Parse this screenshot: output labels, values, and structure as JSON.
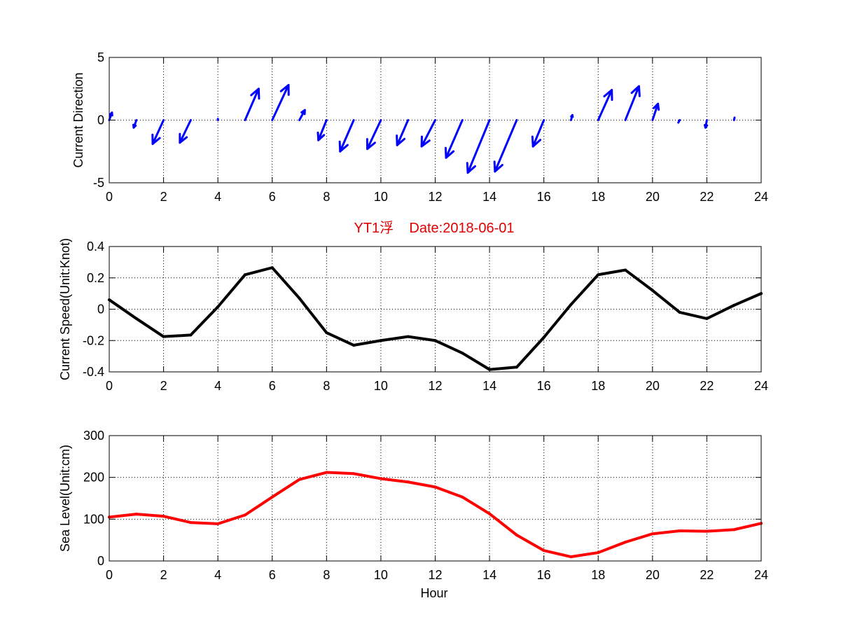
{
  "figure": {
    "title": "YT1浮    Date:2018-06-01",
    "title_color": "#e00000",
    "xlabel": "Hour"
  },
  "chart_data": [
    {
      "type": "quiver",
      "ylabel": "Current Direction",
      "xlim": [
        0,
        24
      ],
      "ylim": [
        -5,
        5
      ],
      "xticks": [
        0,
        2,
        4,
        6,
        8,
        10,
        12,
        14,
        16,
        18,
        20,
        22,
        24
      ],
      "yticks": [
        -5,
        0,
        5
      ],
      "grid": true,
      "color": "#0000ff",
      "arrows": [
        {
          "x": 0,
          "u": 0.1,
          "v": 0.6
        },
        {
          "x": 1,
          "u": -0.1,
          "v": -0.6
        },
        {
          "x": 2,
          "u": -0.4,
          "v": -1.9
        },
        {
          "x": 3,
          "u": -0.4,
          "v": -1.8
        },
        {
          "x": 4,
          "u": 0.0,
          "v": 0.1
        },
        {
          "x": 5,
          "u": 0.5,
          "v": 2.5
        },
        {
          "x": 6,
          "u": 0.6,
          "v": 2.8
        },
        {
          "x": 7,
          "u": 0.2,
          "v": 0.8
        },
        {
          "x": 8,
          "u": -0.3,
          "v": -1.6
        },
        {
          "x": 9,
          "u": -0.5,
          "v": -2.5
        },
        {
          "x": 10,
          "u": -0.5,
          "v": -2.3
        },
        {
          "x": 11,
          "u": -0.4,
          "v": -2.0
        },
        {
          "x": 12,
          "u": -0.5,
          "v": -2.1
        },
        {
          "x": 13,
          "u": -0.6,
          "v": -3.0
        },
        {
          "x": 14,
          "u": -0.8,
          "v": -4.2
        },
        {
          "x": 15,
          "u": -0.8,
          "v": -4.1
        },
        {
          "x": 16,
          "u": -0.4,
          "v": -2.1
        },
        {
          "x": 17,
          "u": 0.05,
          "v": 0.4
        },
        {
          "x": 18,
          "u": 0.5,
          "v": 2.4
        },
        {
          "x": 19,
          "u": 0.5,
          "v": 2.7
        },
        {
          "x": 20,
          "u": 0.2,
          "v": 1.3
        },
        {
          "x": 21,
          "u": -0.05,
          "v": -0.2
        },
        {
          "x": 22,
          "u": -0.05,
          "v": -0.6
        },
        {
          "x": 23,
          "u": 0.02,
          "v": 0.2
        }
      ]
    },
    {
      "type": "line",
      "ylabel": "Current Speed(Unit:Knot)",
      "xlim": [
        0,
        24
      ],
      "ylim": [
        -0.4,
        0.4
      ],
      "xticks": [
        0,
        2,
        4,
        6,
        8,
        10,
        12,
        14,
        16,
        18,
        20,
        22,
        24
      ],
      "yticks": [
        -0.4,
        -0.2,
        0,
        0.2,
        0.4
      ],
      "ytick_labels": [
        "-0.4",
        "-0.2",
        "0",
        "0.2",
        "0.4"
      ],
      "grid": true,
      "color": "#000000",
      "x": [
        0,
        1,
        2,
        3,
        4,
        5,
        6,
        7,
        8,
        9,
        10,
        11,
        12,
        13,
        14,
        15,
        16,
        17,
        18,
        19,
        20,
        21,
        22,
        23,
        24
      ],
      "y": [
        0.06,
        -0.06,
        -0.175,
        -0.165,
        0.015,
        0.22,
        0.265,
        0.07,
        -0.15,
        -0.23,
        -0.2,
        -0.175,
        -0.2,
        -0.28,
        -0.385,
        -0.37,
        -0.18,
        0.03,
        0.22,
        0.25,
        0.12,
        -0.02,
        -0.06,
        0.025,
        0.1
      ]
    },
    {
      "type": "line",
      "ylabel": "Sea Level(Unit:cm)",
      "xlim": [
        0,
        24
      ],
      "ylim": [
        0,
        300
      ],
      "xticks": [
        0,
        2,
        4,
        6,
        8,
        10,
        12,
        14,
        16,
        18,
        20,
        22,
        24
      ],
      "yticks": [
        0,
        100,
        200,
        300
      ],
      "grid": true,
      "color": "#ff0000",
      "x": [
        0,
        1,
        2,
        3,
        4,
        5,
        6,
        7,
        8,
        9,
        10,
        11,
        12,
        13,
        14,
        15,
        16,
        17,
        18,
        19,
        20,
        21,
        22,
        23,
        24
      ],
      "y": [
        105,
        112,
        107,
        92,
        89,
        110,
        153,
        195,
        212,
        209,
        197,
        189,
        177,
        153,
        113,
        62,
        25,
        10,
        20,
        45,
        65,
        72,
        71,
        75,
        90
      ]
    }
  ]
}
